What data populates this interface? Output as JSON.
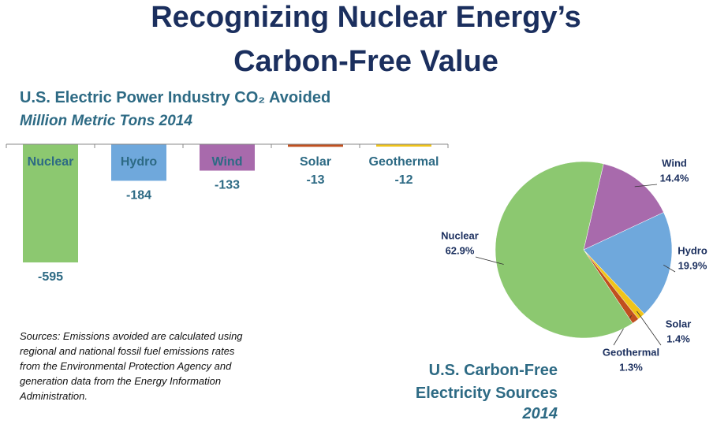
{
  "title": "Recognizing Nuclear Energy’s Carbon-Free Value",
  "note": "Sources: Emissions avoided are calculated using regional and national fossil fuel emissions rates from the Environmental Protection Agency and generation data from the Energy Information Administration.",
  "chart_data": [
    {
      "type": "bar",
      "title": "U.S. Electric Power Industry CO₂ Avoided",
      "subtitle": "Million Metric Tons 2014",
      "categories": [
        "Nuclear",
        "Hydro",
        "Wind",
        "Solar",
        "Geothermal"
      ],
      "values": [
        -595,
        -184,
        -133,
        -13,
        -12
      ],
      "colors": [
        "#8cc870",
        "#6fa8dc",
        "#a86aac",
        "#c0501f",
        "#f0c419"
      ]
    },
    {
      "type": "pie",
      "title": "U.S. Carbon-Free Electricity Sources",
      "subtitle": "2014",
      "categories": [
        "Wind",
        "Hydro",
        "Solar",
        "Geothermal",
        "Nuclear"
      ],
      "values": [
        14.4,
        19.9,
        1.4,
        1.3,
        62.9
      ],
      "value_labels": [
        "14.4%",
        "19.9%",
        "1.4%",
        "1.3%",
        "62.9%"
      ],
      "colors": [
        "#a86aac",
        "#6fa8dc",
        "#f0c419",
        "#c0501f",
        "#8cc870"
      ]
    }
  ]
}
